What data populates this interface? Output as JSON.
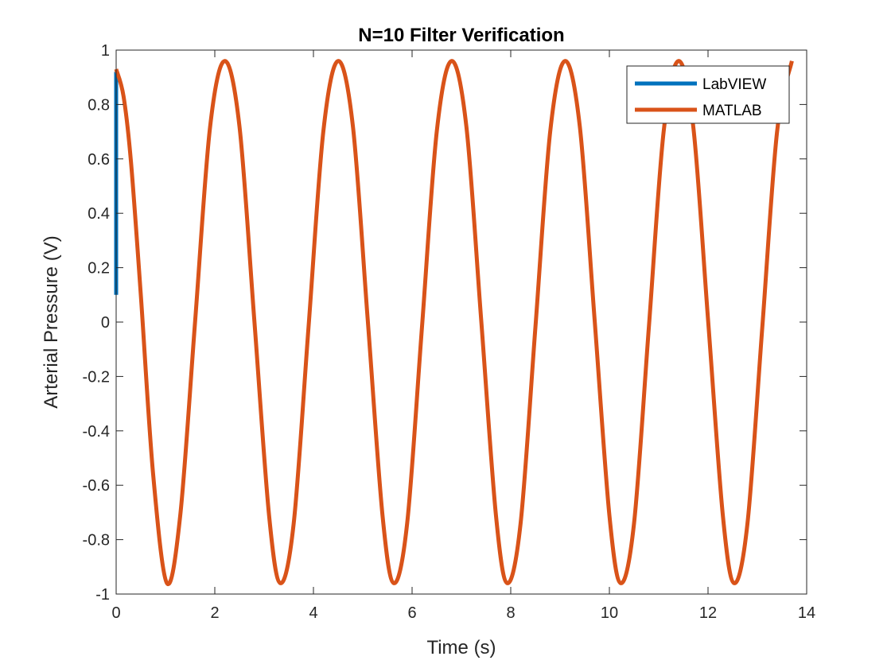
{
  "chart_data": {
    "type": "line",
    "title": "N=10 Filter Verification",
    "xlabel": "Time (s)",
    "ylabel": "Arterial Pressure (V)",
    "xlim": [
      0,
      14
    ],
    "ylim": [
      -1,
      1
    ],
    "xticks": [
      0,
      2,
      4,
      6,
      8,
      10,
      12,
      14
    ],
    "xtick_labels": [
      "0",
      "2",
      "4",
      "6",
      "8",
      "10",
      "12",
      "14"
    ],
    "yticks": [
      -1,
      -0.8,
      -0.6,
      -0.4,
      -0.2,
      0,
      0.2,
      0.4,
      0.6,
      0.8,
      1
    ],
    "ytick_labels": [
      "-1",
      "-0.8",
      "-0.6",
      "-0.4",
      "-0.2",
      "0",
      "0.2",
      "0.4",
      "0.6",
      "0.8",
      "1"
    ],
    "grid": false,
    "legend_position": "top-right",
    "series": [
      {
        "name": "LabVIEW",
        "color": "#0072BD",
        "x": [
          0,
          0,
          0
        ],
        "y": [
          0.1,
          0.5,
          0.92
        ]
      },
      {
        "name": "MATLAB",
        "color": "#D95319",
        "x": [
          0,
          0.15,
          0.3,
          0.5,
          0.75,
          1.03,
          1.3,
          1.6,
          1.9,
          2.2,
          2.5,
          2.8,
          3.1,
          3.33,
          3.6,
          3.9,
          4.2,
          4.5,
          4.8,
          5.1,
          5.4,
          5.63,
          5.9,
          6.2,
          6.5,
          6.8,
          7.1,
          7.4,
          7.7,
          7.93,
          8.2,
          8.5,
          8.8,
          9.1,
          9.4,
          9.7,
          10.0,
          10.23,
          10.5,
          10.8,
          11.1,
          11.4,
          11.7,
          12.0,
          12.3,
          12.53,
          12.8,
          13.1,
          13.4,
          13.7
        ],
        "y": [
          0.93,
          0.83,
          0.59,
          0.1,
          -0.56,
          -0.96,
          -0.71,
          0.0,
          0.71,
          0.96,
          0.72,
          0.01,
          -0.71,
          -0.96,
          -0.74,
          -0.02,
          0.7,
          0.96,
          0.72,
          0.01,
          -0.71,
          -0.96,
          -0.74,
          -0.02,
          0.7,
          0.96,
          0.72,
          0.01,
          -0.71,
          -0.96,
          -0.74,
          -0.02,
          0.7,
          0.96,
          0.72,
          0.01,
          -0.71,
          -0.96,
          -0.74,
          -0.02,
          0.7,
          0.96,
          0.72,
          0.01,
          -0.71,
          -0.96,
          -0.74,
          -0.02,
          0.7,
          0.96
        ]
      }
    ]
  }
}
